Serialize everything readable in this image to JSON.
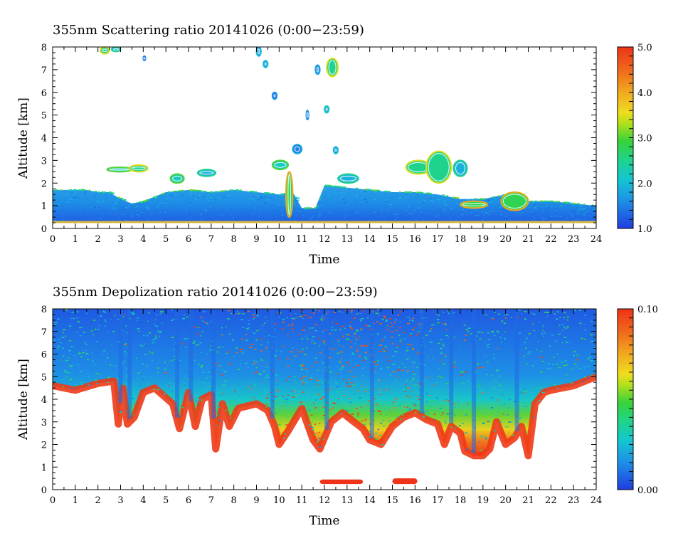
{
  "chart_data": [
    {
      "type": "heatmap",
      "title": "355nm Scattering ratio  20141026 (0:00−23:59)",
      "xlabel": "Time",
      "ylabel": "Altitude [km]",
      "xlim": [
        0,
        24
      ],
      "ylim": [
        0,
        8
      ],
      "x_ticks": [
        "0",
        "1",
        "2",
        "3",
        "4",
        "5",
        "6",
        "7",
        "8",
        "9",
        "10",
        "11",
        "12",
        "13",
        "14",
        "15",
        "16",
        "17",
        "18",
        "19",
        "20",
        "21",
        "22",
        "23",
        "24"
      ],
      "y_ticks": [
        "0",
        "1",
        "2",
        "3",
        "4",
        "5",
        "6",
        "7",
        "8"
      ],
      "colorbar": {
        "range": [
          1.0,
          5.0
        ],
        "tick_labels": [
          "5.0",
          "4.0",
          "3.0",
          "2.0",
          "1.0"
        ],
        "tick_values": [
          5.0,
          4.0,
          3.0,
          2.0,
          1.0
        ]
      },
      "boundary_layer_top_km": [
        [
          0,
          1.7
        ],
        [
          1.5,
          1.7
        ],
        [
          2,
          1.6
        ],
        [
          2.5,
          1.6
        ],
        [
          3,
          1.3
        ],
        [
          3.5,
          1.1
        ],
        [
          4,
          1.2
        ],
        [
          5,
          1.6
        ],
        [
          6,
          1.7
        ],
        [
          7,
          1.6
        ],
        [
          8,
          1.7
        ],
        [
          9,
          1.6
        ],
        [
          10,
          1.5
        ],
        [
          10.6,
          1.6
        ],
        [
          11,
          0.9
        ],
        [
          11.6,
          0.9
        ],
        [
          12,
          1.9
        ],
        [
          13,
          1.8
        ],
        [
          14,
          1.7
        ],
        [
          15,
          1.6
        ],
        [
          16,
          1.6
        ],
        [
          17,
          1.5
        ],
        [
          18,
          1.3
        ],
        [
          19,
          1.3
        ],
        [
          20,
          1.5
        ],
        [
          21,
          1.2
        ],
        [
          22,
          1.2
        ],
        [
          23,
          1.1
        ],
        [
          24,
          1.0
        ]
      ],
      "cloud_patches": [
        {
          "x": [
            2.1,
            2.5
          ],
          "y": [
            7.7,
            8.0
          ],
          "value": 3.5
        },
        {
          "x": [
            2.6,
            3.0
          ],
          "y": [
            7.8,
            8.0
          ],
          "value": 2.5
        },
        {
          "x": [
            4.0,
            4.1
          ],
          "y": [
            7.4,
            7.6
          ],
          "value": 1.5
        },
        {
          "x": [
            9.0,
            9.2
          ],
          "y": [
            7.6,
            8.0
          ],
          "value": 2.0
        },
        {
          "x": [
            9.3,
            9.5
          ],
          "y": [
            7.1,
            7.4
          ],
          "value": 2.0
        },
        {
          "x": [
            12.1,
            12.6
          ],
          "y": [
            6.7,
            7.5
          ],
          "value": 3.5
        },
        {
          "x": [
            11.6,
            11.8
          ],
          "y": [
            6.8,
            7.2
          ],
          "value": 1.8
        },
        {
          "x": [
            9.7,
            9.9
          ],
          "y": [
            5.7,
            6.0
          ],
          "value": 1.6
        },
        {
          "x": [
            11.2,
            11.3
          ],
          "y": [
            4.8,
            5.2
          ],
          "value": 1.6
        },
        {
          "x": [
            12.0,
            12.2
          ],
          "y": [
            5.1,
            5.4
          ],
          "value": 2.2
        },
        {
          "x": [
            12.4,
            12.6
          ],
          "y": [
            3.3,
            3.6
          ],
          "value": 2.0
        },
        {
          "x": [
            10.6,
            11.0
          ],
          "y": [
            3.3,
            3.7
          ],
          "value": 1.8
        },
        {
          "x": [
            2.4,
            3.5
          ],
          "y": [
            2.5,
            2.7
          ],
          "value": 3.0
        },
        {
          "x": [
            3.4,
            4.2
          ],
          "y": [
            2.5,
            2.8
          ],
          "value": 3.5
        },
        {
          "x": [
            5.2,
            5.8
          ],
          "y": [
            2.0,
            2.4
          ],
          "value": 3.0
        },
        {
          "x": [
            6.4,
            7.2
          ],
          "y": [
            2.3,
            2.6
          ],
          "value": 2.5
        },
        {
          "x": [
            9.7,
            10.4
          ],
          "y": [
            2.6,
            3.0
          ],
          "value": 3.0
        },
        {
          "x": [
            12.6,
            13.5
          ],
          "y": [
            2.0,
            2.4
          ],
          "value": 2.5
        },
        {
          "x": [
            15.6,
            16.7
          ],
          "y": [
            2.4,
            3.0
          ],
          "value": 3.5
        },
        {
          "x": [
            16.5,
            17.6
          ],
          "y": [
            2.0,
            3.4
          ],
          "value": 3.5
        },
        {
          "x": [
            17.7,
            18.3
          ],
          "y": [
            2.3,
            3.0
          ],
          "value": 2.5
        },
        {
          "x": [
            10.3,
            10.6
          ],
          "y": [
            0.5,
            2.5
          ],
          "value": 4.0
        },
        {
          "x": [
            18.0,
            19.2
          ],
          "y": [
            0.9,
            1.2
          ],
          "value": 4.0
        },
        {
          "x": [
            19.8,
            21.0
          ],
          "y": [
            0.8,
            1.6
          ],
          "value": 4.0
        }
      ]
    },
    {
      "type": "heatmap",
      "title": "355nm Depolization ratio  20141026 (0:00−23:59)",
      "xlabel": "Time",
      "ylabel": "Altitude [km]",
      "xlim": [
        0,
        24
      ],
      "ylim": [
        0,
        8
      ],
      "x_ticks": [
        "0",
        "1",
        "2",
        "3",
        "4",
        "5",
        "6",
        "7",
        "8",
        "9",
        "10",
        "11",
        "12",
        "13",
        "14",
        "15",
        "16",
        "17",
        "18",
        "19",
        "20",
        "21",
        "22",
        "23",
        "24"
      ],
      "y_ticks": [
        "0",
        "1",
        "2",
        "3",
        "4",
        "5",
        "6",
        "7",
        "8"
      ],
      "colorbar": {
        "range": [
          0.0,
          0.1
        ],
        "tick_labels": [
          "0.10",
          "0.00"
        ],
        "tick_values": [
          0.1,
          0.0
        ]
      },
      "signal_floor_km": [
        [
          0,
          4.6
        ],
        [
          1,
          4.4
        ],
        [
          2,
          4.7
        ],
        [
          2.7,
          4.8
        ],
        [
          2.9,
          2.9
        ],
        [
          3.1,
          4.5
        ],
        [
          3.3,
          2.9
        ],
        [
          3.6,
          3.2
        ],
        [
          4.0,
          4.3
        ],
        [
          4.5,
          4.5
        ],
        [
          5.3,
          3.8
        ],
        [
          5.6,
          2.7
        ],
        [
          6.0,
          4.3
        ],
        [
          6.3,
          2.8
        ],
        [
          6.6,
          4.0
        ],
        [
          7.0,
          4.2
        ],
        [
          7.2,
          1.8
        ],
        [
          7.5,
          3.8
        ],
        [
          7.8,
          2.8
        ],
        [
          8.2,
          3.6
        ],
        [
          9,
          3.8
        ],
        [
          9.5,
          3.5
        ],
        [
          9.8,
          2.8
        ],
        [
          10,
          2.0
        ],
        [
          10.4,
          2.6
        ],
        [
          11,
          3.6
        ],
        [
          11.5,
          2.2
        ],
        [
          11.8,
          1.8
        ],
        [
          12.3,
          3.0
        ],
        [
          12.8,
          3.4
        ],
        [
          13.3,
          3.0
        ],
        [
          13.7,
          2.7
        ],
        [
          14.0,
          2.2
        ],
        [
          14.5,
          2.0
        ],
        [
          15.0,
          2.8
        ],
        [
          15.5,
          3.2
        ],
        [
          16.0,
          3.4
        ],
        [
          16.5,
          3.1
        ],
        [
          17.0,
          2.9
        ],
        [
          17.3,
          2.0
        ],
        [
          17.6,
          2.8
        ],
        [
          18.0,
          2.5
        ],
        [
          18.2,
          1.7
        ],
        [
          18.6,
          1.5
        ],
        [
          19.0,
          1.5
        ],
        [
          19.3,
          1.8
        ],
        [
          19.6,
          3.0
        ],
        [
          20.0,
          2.0
        ],
        [
          20.4,
          2.3
        ],
        [
          20.7,
          2.8
        ],
        [
          21.0,
          1.5
        ],
        [
          21.3,
          3.8
        ],
        [
          21.7,
          4.3
        ],
        [
          22,
          4.4
        ],
        [
          23,
          4.6
        ],
        [
          24,
          5.0
        ]
      ],
      "surface_patches": [
        {
          "x": [
            11.8,
            13.7
          ],
          "y": [
            0.25,
            0.45
          ],
          "value": 0.1
        },
        {
          "x": [
            15.0,
            16.1
          ],
          "y": [
            0.25,
            0.5
          ],
          "value": 0.1
        }
      ]
    }
  ]
}
